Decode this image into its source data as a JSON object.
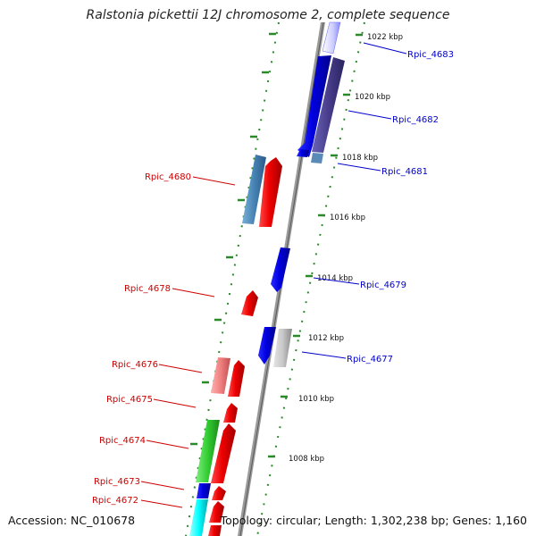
{
  "title": "Ralstonia pickettii 12J chromosome 2, complete sequence",
  "footer": {
    "accession": "Accession: NC_010678",
    "topology": "Topology: circular; Length: 1,302,238 bp; Genes: 1,160"
  },
  "colors": {
    "forward_label": "#cc0000",
    "reverse_label": "#0000cc",
    "backbone": "#8c8c8c",
    "tick": "#2a8a2a"
  },
  "ticks": [
    "1022 kbp",
    "1020 kbp",
    "1018 kbp",
    "1016 kbp",
    "1014 kbp",
    "1012 kbp",
    "1010 kbp",
    "1008 kbp"
  ],
  "genes_reverse": [
    "Rpic_4683",
    "Rpic_4682",
    "Rpic_4681",
    "Rpic_4679",
    "Rpic_4677"
  ],
  "genes_forward": [
    "Rpic_4680",
    "Rpic_4678",
    "Rpic_4676",
    "Rpic_4675",
    "Rpic_4674",
    "Rpic_4673",
    "Rpic_4672"
  ]
}
